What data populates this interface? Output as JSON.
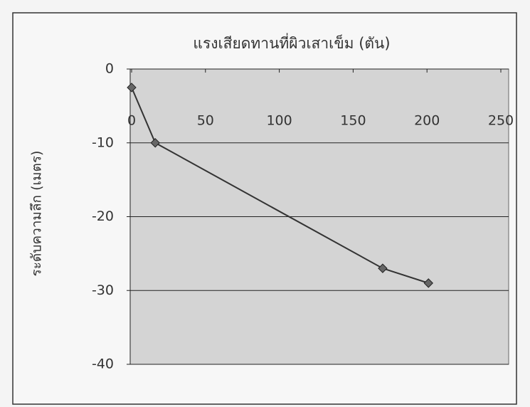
{
  "chart_data": {
    "type": "line",
    "title": "แรงเสียดทานที่ผิวเสาเข็ม (ตัน)",
    "y_label": "ระดับความลึก (เมตร)",
    "x": [
      0,
      16,
      170,
      201
    ],
    "series": [
      {
        "color": "#333333",
        "values": [
          -2.5,
          -10,
          -27,
          -29
        ]
      }
    ],
    "xlim": [
      0,
      250
    ],
    "xticks": [
      0,
      50,
      100,
      150,
      200,
      250
    ],
    "ylim": [
      -40,
      0
    ],
    "yticks": [
      0,
      -10,
      -20,
      -30,
      -40
    ],
    "grid": true
  }
}
